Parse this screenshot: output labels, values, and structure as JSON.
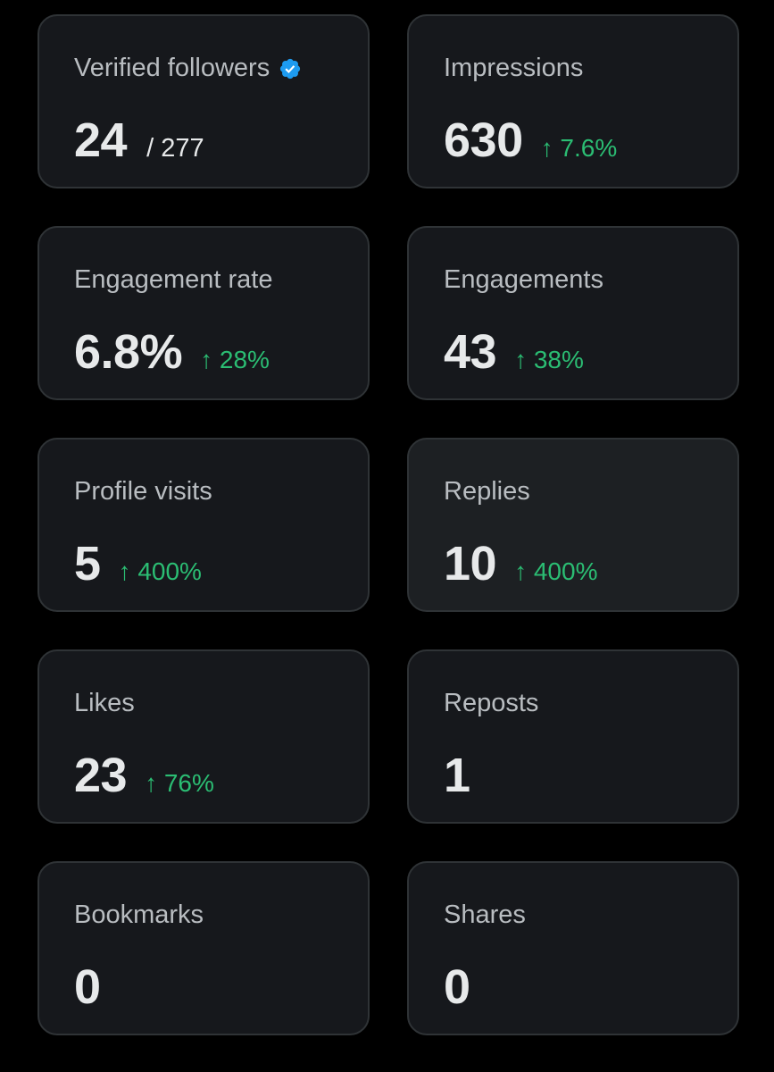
{
  "metrics": [
    {
      "label": "Verified followers",
      "value": "24",
      "of_total": "/ 277",
      "change": "",
      "verified_icon": "verified-badge-icon",
      "verified_color": "#1d9bf0"
    },
    {
      "label": "Impressions",
      "value": "630",
      "of_total": "",
      "change": "↑ 7.6%"
    },
    {
      "label": "Engagement rate",
      "value": "6.8%",
      "of_total": "",
      "change": "↑ 28%"
    },
    {
      "label": "Engagements",
      "value": "43",
      "of_total": "",
      "change": "↑ 38%"
    },
    {
      "label": "Profile visits",
      "value": "5",
      "of_total": "",
      "change": "↑ 400%"
    },
    {
      "label": "Replies",
      "value": "10",
      "of_total": "",
      "change": "↑ 400%"
    },
    {
      "label": "Likes",
      "value": "23",
      "of_total": "",
      "change": "↑ 76%"
    },
    {
      "label": "Reposts",
      "value": "1",
      "of_total": "",
      "change": ""
    },
    {
      "label": "Bookmarks",
      "value": "0",
      "of_total": "",
      "change": ""
    },
    {
      "label": "Shares",
      "value": "0",
      "of_total": "",
      "change": ""
    }
  ],
  "colors": {
    "background": "#000000",
    "card": "#16181c",
    "card_hover": "#1d2023",
    "positive_change": "#2bbd73"
  }
}
